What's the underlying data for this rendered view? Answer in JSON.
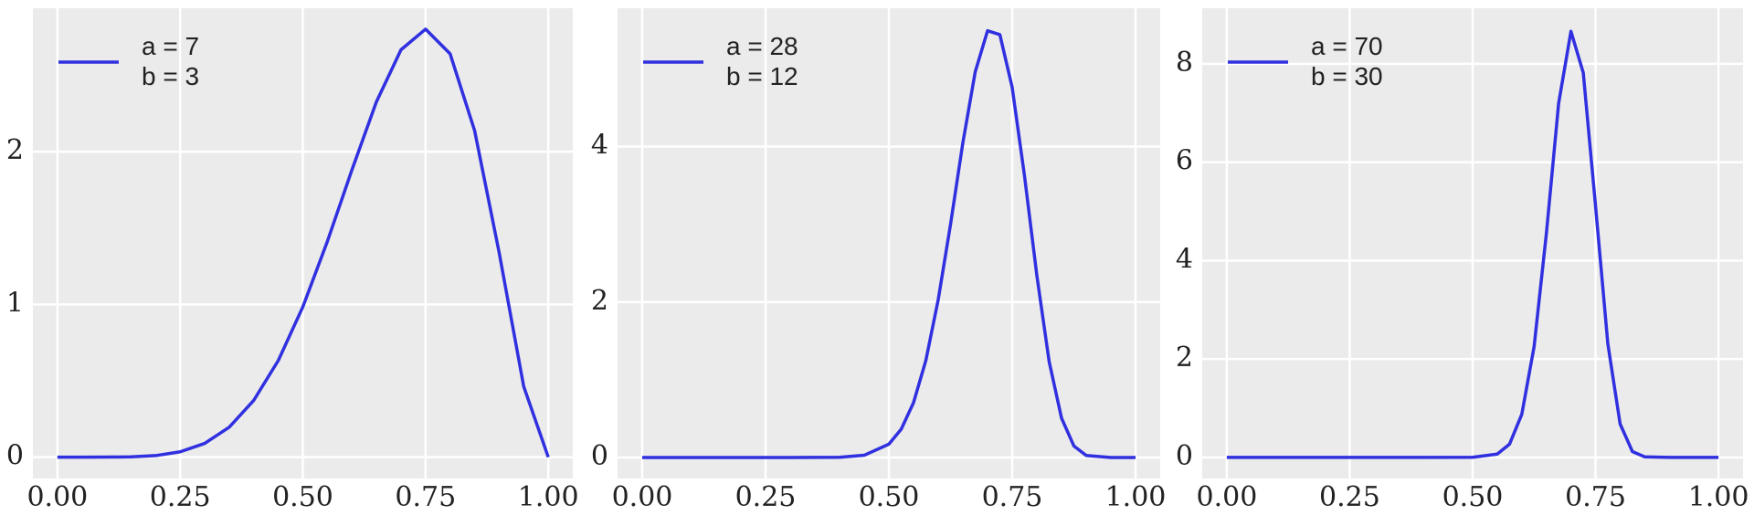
{
  "chart_data": [
    {
      "type": "line",
      "x": [
        0,
        0.05,
        0.1,
        0.15,
        0.2,
        0.25,
        0.3,
        0.35,
        0.4,
        0.45,
        0.5,
        0.55,
        0.6,
        0.65,
        0.7,
        0.75,
        0.8,
        0.85,
        0.9,
        0.95,
        1
      ],
      "series": [
        {
          "name": "a = 7\nb = 3",
          "color": "#3030e0",
          "values": [
            0,
            0,
            0.0002,
            0.002,
            0.01,
            0.035,
            0.09,
            0.196,
            0.372,
            0.633,
            0.984,
            1.413,
            1.881,
            2.328,
            2.668,
            2.803,
            2.642,
            2.138,
            1.339,
            0.463,
            0
          ]
        }
      ],
      "xlim": [
        -0.05,
        1.05
      ],
      "ylim": [
        -0.14,
        2.94
      ],
      "xticks": [
        {
          "value": 0,
          "label": "0.00"
        },
        {
          "value": 0.25,
          "label": "0.25"
        },
        {
          "value": 0.5,
          "label": "0.50"
        },
        {
          "value": 0.75,
          "label": "0.75"
        },
        {
          "value": 1,
          "label": "1.00"
        }
      ],
      "yticks": [
        0,
        1,
        2
      ],
      "grid": true,
      "legend": "upper left"
    },
    {
      "type": "line",
      "x": [
        0,
        0.1,
        0.2,
        0.3,
        0.4,
        0.45,
        0.5,
        0.525,
        0.55,
        0.575,
        0.6,
        0.625,
        0.65,
        0.675,
        0.7,
        0.725,
        0.75,
        0.775,
        0.8,
        0.825,
        0.85,
        0.875,
        0.9,
        0.95,
        1
      ],
      "series": [
        {
          "name": "a = 28\nb = 12",
          "color": "#3030e0",
          "values": [
            0,
            0,
            0,
            0,
            0.003,
            0.029,
            0.172,
            0.364,
            0.706,
            1.25,
            2.03,
            3.0,
            4.05,
            4.96,
            5.49,
            5.44,
            4.76,
            3.62,
            2.34,
            1.23,
            0.507,
            0.149,
            0.027,
            0,
            0
          ]
        }
      ],
      "xlim": [
        -0.05,
        1.05
      ],
      "ylim": [
        -0.27,
        5.78
      ],
      "xticks": [
        {
          "value": 0,
          "label": "0.00"
        },
        {
          "value": 0.25,
          "label": "0.25"
        },
        {
          "value": 0.5,
          "label": "0.50"
        },
        {
          "value": 0.75,
          "label": "0.75"
        },
        {
          "value": 1,
          "label": "1.00"
        }
      ],
      "yticks": [
        0,
        2,
        4
      ],
      "grid": true,
      "legend": "upper left"
    },
    {
      "type": "line",
      "x": [
        0,
        0.1,
        0.2,
        0.3,
        0.4,
        0.5,
        0.55,
        0.575,
        0.6,
        0.625,
        0.65,
        0.675,
        0.7,
        0.725,
        0.75,
        0.775,
        0.8,
        0.825,
        0.85,
        0.9,
        0.95,
        1
      ],
      "series": [
        {
          "name": "a = 70\nb = 30",
          "color": "#3030e0",
          "values": [
            0,
            0,
            0,
            0,
            0,
            0.002,
            0.066,
            0.268,
            0.875,
            2.25,
            4.55,
            7.2,
            8.66,
            7.82,
            5.11,
            2.31,
            0.679,
            0.118,
            0.011,
            0,
            0,
            0
          ]
        }
      ],
      "xlim": [
        -0.05,
        1.05
      ],
      "ylim": [
        -0.43,
        9.13
      ],
      "xticks": [
        {
          "value": 0,
          "label": "0.00"
        },
        {
          "value": 0.25,
          "label": "0.25"
        },
        {
          "value": 0.5,
          "label": "0.50"
        },
        {
          "value": 0.75,
          "label": "0.75"
        },
        {
          "value": 1,
          "label": "1.00"
        }
      ],
      "yticks": [
        0,
        2,
        4,
        6,
        8
      ],
      "grid": true,
      "legend": "upper left"
    }
  ]
}
